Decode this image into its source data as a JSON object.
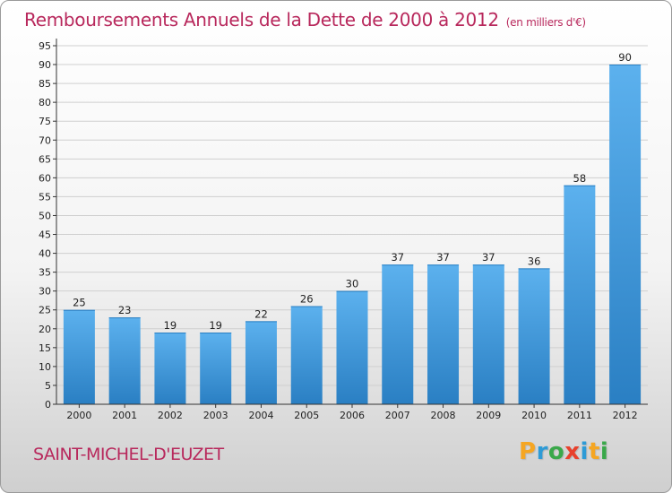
{
  "colors": {
    "title": "#b8285c",
    "bar_light": "#5cb1ee",
    "bar_dark": "#2a7fc3",
    "grid": "#cfcfcf",
    "axis": "#333333"
  },
  "chart_data": {
    "type": "bar",
    "title": "Remboursements Annuels de la Dette de 2000 à 2012",
    "subtitle": "(en milliers d'€)",
    "xlabel": "",
    "ylabel": "",
    "categories": [
      "2000",
      "2001",
      "2002",
      "2003",
      "2004",
      "2005",
      "2006",
      "2007",
      "2008",
      "2009",
      "2010",
      "2011",
      "2012"
    ],
    "values": [
      25,
      23,
      19,
      19,
      22,
      26,
      30,
      37,
      37,
      37,
      36,
      58,
      90
    ],
    "ylim": [
      0,
      95
    ],
    "yticks": [
      "0",
      "5",
      "10",
      "15",
      "20",
      "25",
      "30",
      "35",
      "40",
      "45",
      "50",
      "55",
      "60",
      "65",
      "70",
      "75",
      "80",
      "85",
      "90",
      "95"
    ],
    "grid": true,
    "data_labels": true
  },
  "footer": {
    "commune": "SAINT-MICHEL-D'EUZET"
  },
  "logo": {
    "letters": [
      {
        "char": "P",
        "color": "#f5a623"
      },
      {
        "char": "r",
        "color": "#2e9bd6"
      },
      {
        "char": "o",
        "color": "#3aa84a"
      },
      {
        "char": "x",
        "color": "#e8412c"
      },
      {
        "char": "i",
        "color": "#2e9bd6"
      },
      {
        "char": "t",
        "color": "#f5a623"
      },
      {
        "char": "i",
        "color": "#3aa84a"
      }
    ]
  }
}
